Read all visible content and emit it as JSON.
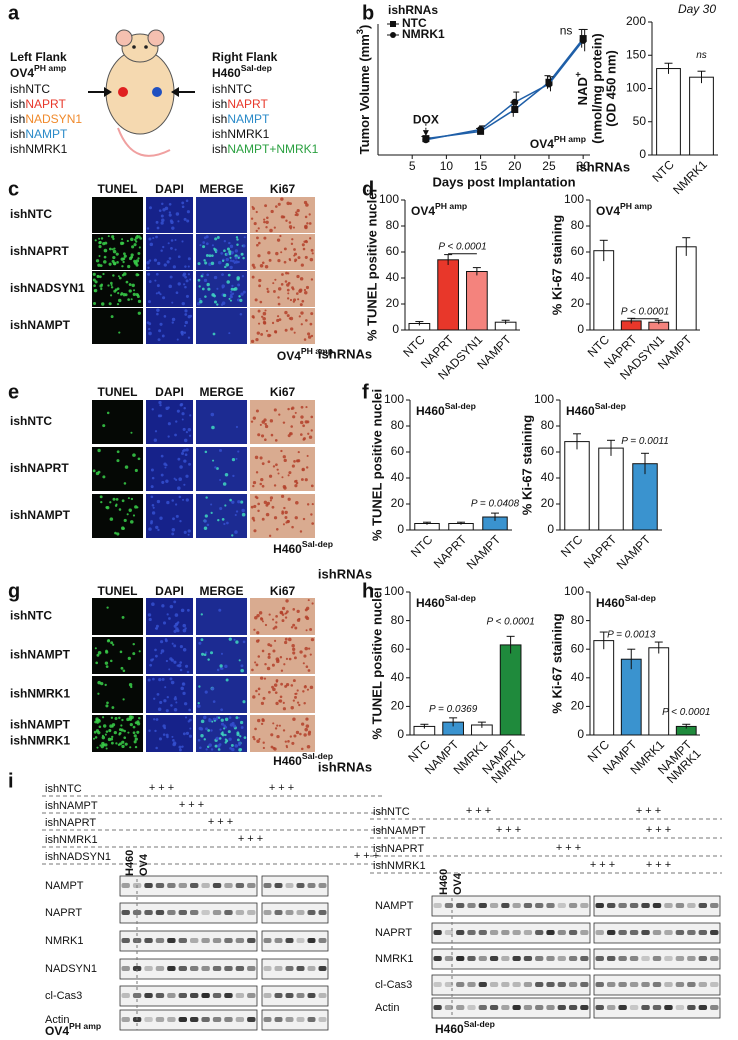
{
  "panels": {
    "a": {
      "label": "a",
      "left": {
        "heading": "Left Flank",
        "model": {
          "base": "OV4",
          "sup": "PH amp",
          "color": "#e8452c"
        },
        "items": [
          {
            "prefix": "ish",
            "name": "NTC",
            "color": "#111111"
          },
          {
            "prefix": "ish",
            "name": "NAPRT",
            "color": "#e8372a"
          },
          {
            "prefix": "ish",
            "name": "NADSYN1",
            "color": "#f08a2c"
          },
          {
            "prefix": "ish",
            "name": "NAMPT",
            "color": "#2a8ac8"
          },
          {
            "prefix": "ish",
            "name": "NMRK1",
            "color": "#111111"
          }
        ]
      },
      "right": {
        "heading": "Right Flank",
        "model": {
          "base": "H460",
          "sup": "Sal-dep",
          "color": "#2a8ac8"
        },
        "items": [
          {
            "prefix": "ish",
            "name": "NTC",
            "color": "#111111"
          },
          {
            "prefix": "ish",
            "name": "NAPRT",
            "color": "#e8372a"
          },
          {
            "prefix": "ish",
            "name": "NAMPT",
            "color": "#2a8ac8"
          },
          {
            "prefix": "ish",
            "name": "NMRK1",
            "color": "#111111"
          },
          {
            "prefix": "ish",
            "name": "NAMPT+NMRK1",
            "color": "#2aa040"
          }
        ]
      }
    },
    "b": {
      "label": "b"
    },
    "c": {
      "label": "c",
      "columns": [
        "TUNEL",
        "DAPI",
        "MERGE",
        "Ki67"
      ],
      "rows": [
        [
          "ishNTC"
        ],
        [
          "ishNAPRT"
        ],
        [
          "ishNADSYN1"
        ],
        [
          "ishNAMPT"
        ]
      ],
      "model": {
        "base": "OV4",
        "sup": "PH amp",
        "color": "#e8452c"
      }
    },
    "d": {
      "label": "d"
    },
    "e": {
      "label": "e",
      "columns": [
        "TUNEL",
        "DAPI",
        "MERGE",
        "Ki67"
      ],
      "rows": [
        [
          "ishNTC"
        ],
        [
          "ishNAPRT"
        ],
        [
          "ishNAMPT"
        ]
      ],
      "model": {
        "base": "H460",
        "sup": "Sal-dep",
        "color": "#2a8ac8"
      }
    },
    "f": {
      "label": "f"
    },
    "g": {
      "label": "g",
      "columns": [
        "TUNEL",
        "DAPI",
        "MERGE",
        "Ki67"
      ],
      "rows": [
        [
          "ishNTC"
        ],
        [
          "ishNAMPT"
        ],
        [
          "ishNMRK1"
        ],
        [
          "ishNAMPT",
          "ishNMRK1"
        ]
      ],
      "model": {
        "base": "H460",
        "sup": "Sal-dep",
        "color": "#2a8ac8"
      }
    },
    "h": {
      "label": "h"
    },
    "i": {
      "label": "i",
      "left": {
        "treatments": [
          {
            "label": "ishNTC",
            "marks": [
              "+++",
              "+++"
            ]
          },
          {
            "label": "ishNAMPT",
            "marks": [
              "+++"
            ]
          },
          {
            "label": "ishNAPRT",
            "marks": [
              "+++"
            ]
          },
          {
            "label": "ishNMRK1",
            "marks": [
              "+++"
            ]
          },
          {
            "label": "ishNADSYN1",
            "marks": [
              "+++"
            ]
          }
        ],
        "lanes": [
          {
            "text": "H460",
            "color": "#2a8ac8"
          },
          {
            "text": "OV4",
            "color": "#e8452c"
          }
        ],
        "proteins": [
          "NAMPT",
          "NAPRT",
          "NMRK1",
          "NADSYN1",
          "cl-Cas3",
          "Actin"
        ],
        "model": {
          "base": "OV4",
          "sup": "PH amp",
          "color": "#e8452c"
        }
      },
      "right": {
        "treatments": [
          {
            "label": "ishNTC",
            "marks": [
              "+++",
              "+++"
            ]
          },
          {
            "label": "ishNAMPT",
            "marks": [
              "+++",
              "+++"
            ]
          },
          {
            "label": "ishNAPRT",
            "marks": [
              "+++"
            ]
          },
          {
            "label": "ishNMRK1",
            "marks": [
              "+++",
              "+++"
            ]
          }
        ],
        "lanes": [
          {
            "text": "H460",
            "color": "#2a8ac8"
          },
          {
            "text": "OV4",
            "color": "#e8452c"
          }
        ],
        "proteins": [
          "NAMPT",
          "NAPRT",
          "NMRK1",
          "cl-Cas3",
          "Actin"
        ],
        "model": {
          "base": "H460",
          "sup": "Sal-dep",
          "color": "#2a8ac8"
        }
      }
    }
  },
  "chart_data": [
    {
      "type": "line",
      "ylabel": {
        "base": "Tumor Volume (mm",
        "sup": "3",
        "after": ")"
      },
      "xlabel": "Days post Implantation",
      "legend_title": "ishRNAs",
      "x": [
        7,
        15,
        20,
        25,
        30
      ],
      "xlim": [
        0,
        31
      ],
      "xticks": [
        5,
        10,
        15,
        20,
        25,
        30
      ],
      "ylim": [
        0,
        360
      ],
      "marker_color": "#111111",
      "series": [
        {
          "name": "NTC",
          "marker": "square",
          "color": "#1f5fa8",
          "values": [
            45,
            65,
            125,
            200,
            320
          ],
          "errors": [
            6,
            8,
            20,
            18,
            25
          ]
        },
        {
          "name": "NMRK1",
          "marker": "circle",
          "color": "#1f5fa8",
          "values": [
            42,
            70,
            145,
            195,
            315
          ],
          "errors": [
            5,
            10,
            28,
            20,
            30
          ]
        }
      ],
      "annotations": [
        "DOX",
        "ns"
      ],
      "model": {
        "base": "OV4",
        "sup": "PH amp",
        "color": "#e8452c"
      }
    },
    {
      "type": "bar",
      "title": "Day 30",
      "ylabel": [
        {
          "base": "NAD",
          "sup": "+"
        },
        "(nmol/mg protein)",
        "(OD 450 nm)"
      ],
      "xlabel": "ishRNAs",
      "categories": [
        "NTC",
        "NMRK1"
      ],
      "values": [
        130,
        117
      ],
      "errors": [
        8,
        9
      ],
      "colors": [
        "#ffffff",
        "#ffffff"
      ],
      "ylim": [
        0,
        200
      ],
      "yticks": [
        0,
        50,
        100,
        150,
        200
      ],
      "annotations": [
        "ns"
      ]
    },
    {
      "type": "bar",
      "ylabel": "% TUNEL positive nuclei",
      "xlabel": "ishRNAs",
      "categories": [
        "NTC",
        "NAPRT",
        "NADSYN1",
        "NAMPT"
      ],
      "values": [
        5,
        54,
        45,
        6
      ],
      "errors": [
        1.5,
        4,
        3,
        1.5
      ],
      "colors": [
        "#ffffff",
        "#e8372a",
        "#f4837d",
        "#ffffff"
      ],
      "ylim": [
        0,
        100
      ],
      "yticks": [
        0,
        20,
        40,
        60,
        80,
        100
      ],
      "annotations": [
        "P < 0.0001"
      ],
      "model": {
        "base": "OV4",
        "sup": "PH amp",
        "color": "#e8452c"
      }
    },
    {
      "type": "bar",
      "ylabel": "% Ki-67 staining",
      "categories": [
        "NTC",
        "NAPRT",
        "NADSYN1",
        "NAMPT"
      ],
      "values": [
        61,
        7,
        6,
        64
      ],
      "errors": [
        8,
        2,
        1.5,
        7
      ],
      "colors": [
        "#ffffff",
        "#e8372a",
        "#f4837d",
        "#ffffff"
      ],
      "ylim": [
        0,
        100
      ],
      "yticks": [
        0,
        20,
        40,
        60,
        80,
        100
      ],
      "annotations": [
        "P < 0.0001"
      ],
      "model": {
        "base": "OV4",
        "sup": "PH amp",
        "color": "#e8452c"
      }
    },
    {
      "type": "bar",
      "ylabel": "% TUNEL positive nuclei",
      "xlabel": "ishRNAs",
      "categories": [
        "NTC",
        "NAPRT",
        "NAMPT"
      ],
      "values": [
        5,
        5,
        10
      ],
      "errors": [
        1,
        1,
        3
      ],
      "colors": [
        "#ffffff",
        "#ffffff",
        "#3a93cf"
      ],
      "ylim": [
        0,
        100
      ],
      "yticks": [
        0,
        20,
        40,
        60,
        80,
        100
      ],
      "annotations": [
        "P = 0.0408"
      ],
      "model": {
        "base": "H460",
        "sup": "Sal-dep",
        "color": "#2a8ac8"
      }
    },
    {
      "type": "bar",
      "ylabel": "% Ki-67 staining",
      "categories": [
        "NTC",
        "NAPRT",
        "NAMPT"
      ],
      "values": [
        68,
        63,
        51
      ],
      "errors": [
        6,
        6,
        8
      ],
      "colors": [
        "#ffffff",
        "#ffffff",
        "#3a93cf"
      ],
      "ylim": [
        0,
        100
      ],
      "yticks": [
        0,
        20,
        40,
        60,
        80,
        100
      ],
      "annotations": [
        "P = 0.0011"
      ],
      "model": {
        "base": "H460",
        "sup": "Sal-dep",
        "color": "#2a8ac8"
      }
    },
    {
      "type": "bar",
      "ylabel": "% TUNEL positive nuclei",
      "xlabel": "ishRNAs",
      "categories": [
        "NTC",
        "NAMPT",
        "NMRK1",
        [
          "NAMPT",
          "NMRK1"
        ]
      ],
      "values": [
        6,
        9,
        7,
        63
      ],
      "errors": [
        1.5,
        3,
        2,
        6
      ],
      "colors": [
        "#ffffff",
        "#3a93cf",
        "#ffffff",
        "#1f8a3c"
      ],
      "ylim": [
        0,
        100
      ],
      "yticks": [
        0,
        20,
        40,
        60,
        80,
        100
      ],
      "annotations": [
        "P = 0.0369",
        "P < 0.0001"
      ],
      "model": {
        "base": "H460",
        "sup": "Sal-dep",
        "color": "#2a8ac8"
      }
    },
    {
      "type": "bar",
      "ylabel": "% Ki-67 staining",
      "categories": [
        "NTC",
        "NAMPT",
        "NMRK1",
        [
          "NAMPT",
          "NMRK1"
        ]
      ],
      "values": [
        66,
        53,
        61,
        6
      ],
      "errors": [
        6,
        7,
        4,
        1.5
      ],
      "colors": [
        "#ffffff",
        "#3a93cf",
        "#ffffff",
        "#1f8a3c"
      ],
      "ylim": [
        0,
        100
      ],
      "yticks": [
        0,
        20,
        40,
        60,
        80,
        100
      ],
      "annotations": [
        "P = 0.0013",
        "P < 0.0001"
      ],
      "model": {
        "base": "H460",
        "sup": "Sal-dep",
        "color": "#2a8ac8"
      }
    }
  ]
}
